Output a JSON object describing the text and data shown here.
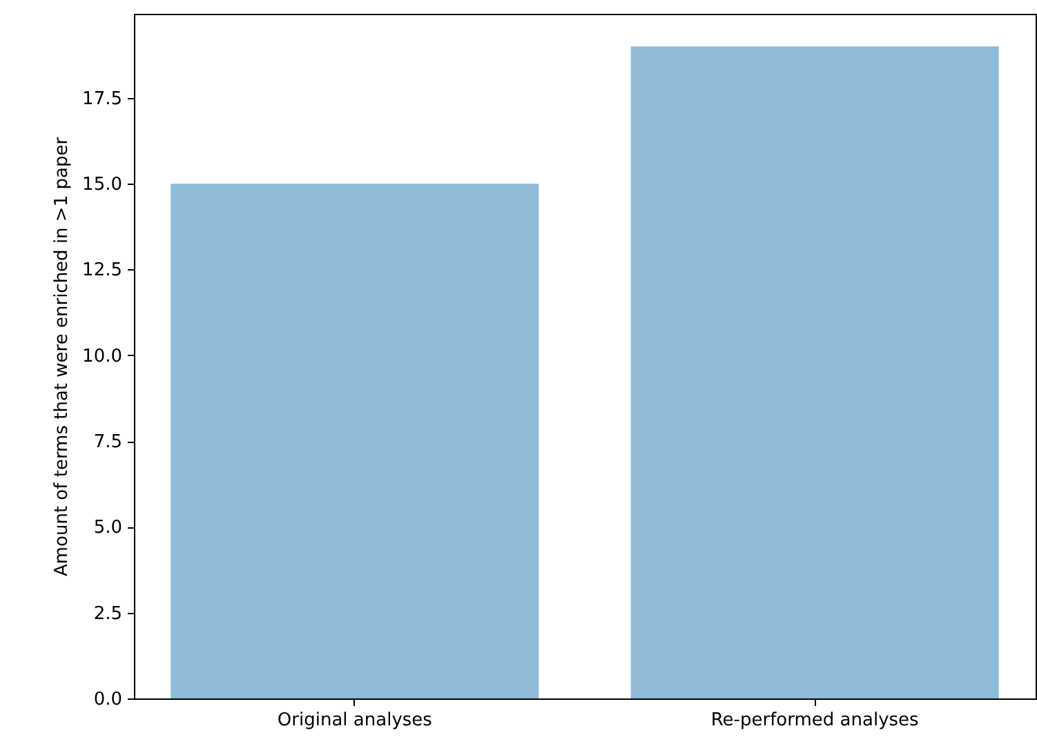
{
  "chart_data": {
    "type": "bar",
    "ylabel": "Amount of terms that were enriched in >1 paper",
    "categories": [
      "Original analyses",
      "Re-performed analyses"
    ],
    "values": [
      15,
      19
    ],
    "color": "#8fbbd9",
    "ylim": [
      0,
      19.95
    ],
    "yticks": [
      {
        "value": 0,
        "label": "0.0"
      },
      2.5,
      {
        "value": 5,
        "label": "5.0"
      },
      7.5,
      {
        "value": 10,
        "label": "10.0"
      },
      12.5,
      {
        "value": 15,
        "label": "15.0"
      },
      17.5
    ],
    "grid": false
  }
}
